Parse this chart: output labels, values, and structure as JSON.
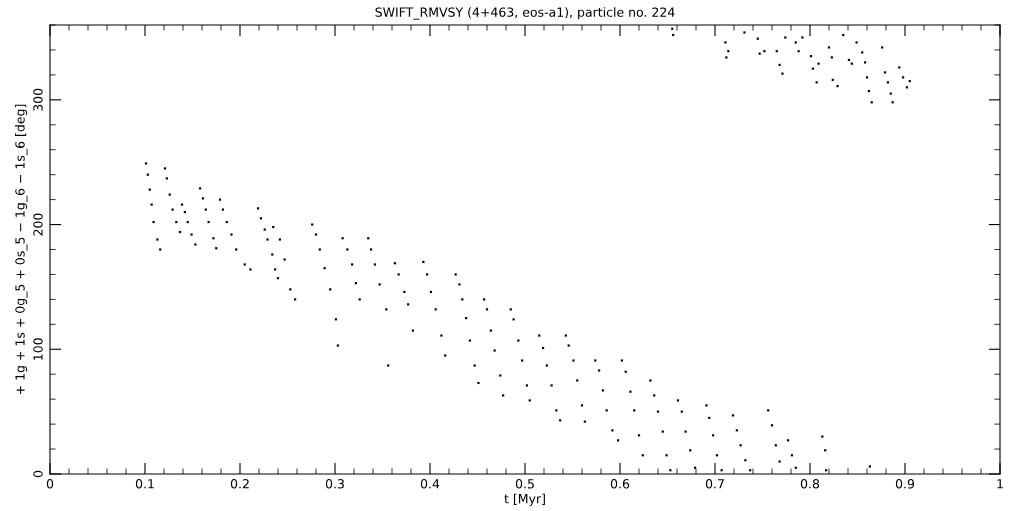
{
  "chart_data": {
    "type": "scatter",
    "title": "SWIFT_RMVSY (4+463, eos-a1), particle no. 224",
    "xlabel": "t [Myr]",
    "ylabel": "+ 1g + 1s + 0g_5 + 0s_5 − 1g_6 − 1s_6 [deg]",
    "xlim": [
      0,
      1
    ],
    "ylim": [
      0,
      360
    ],
    "xticks": [
      0,
      0.1,
      0.2,
      0.3,
      0.4,
      0.5,
      0.6,
      0.7,
      0.8,
      0.9,
      1
    ],
    "yticks": [
      0,
      100,
      200,
      300
    ],
    "grid": false,
    "legend": false,
    "marker": "square",
    "series": [
      {
        "color": "#000000",
        "x": [
          0.101,
          0.103,
          0.105,
          0.107,
          0.109,
          0.113,
          0.116,
          0.121,
          0.123,
          0.126,
          0.129,
          0.133,
          0.137,
          0.139,
          0.142,
          0.145,
          0.149,
          0.153,
          0.158,
          0.161,
          0.164,
          0.167,
          0.172,
          0.175,
          0.179,
          0.182,
          0.186,
          0.191,
          0.196,
          0.205,
          0.211,
          0.219,
          0.222,
          0.226,
          0.229,
          0.234,
          0.237,
          0.24,
          0.235,
          0.242,
          0.247,
          0.253,
          0.258,
          0.276,
          0.28,
          0.284,
          0.289,
          0.295,
          0.301,
          0.303,
          0.308,
          0.313,
          0.318,
          0.322,
          0.326,
          0.335,
          0.338,
          0.342,
          0.347,
          0.354,
          0.356,
          0.363,
          0.367,
          0.373,
          0.377,
          0.382,
          0.393,
          0.397,
          0.401,
          0.406,
          0.412,
          0.416,
          0.427,
          0.431,
          0.434,
          0.438,
          0.442,
          0.447,
          0.451,
          0.457,
          0.46,
          0.464,
          0.468,
          0.474,
          0.477,
          0.485,
          0.488,
          0.493,
          0.497,
          0.502,
          0.505,
          0.515,
          0.519,
          0.523,
          0.528,
          0.533,
          0.537,
          0.543,
          0.546,
          0.551,
          0.555,
          0.56,
          0.563,
          0.574,
          0.578,
          0.582,
          0.586,
          0.592,
          0.598,
          0.602,
          0.606,
          0.611,
          0.615,
          0.62,
          0.624,
          0.632,
          0.636,
          0.64,
          0.645,
          0.649,
          0.653,
          0.661,
          0.665,
          0.669,
          0.674,
          0.679,
          0.691,
          0.694,
          0.698,
          0.702,
          0.707,
          0.719,
          0.723,
          0.727,
          0.732,
          0.756,
          0.76,
          0.764,
          0.768,
          0.777,
          0.781,
          0.785,
          0.813,
          0.816,
          0.863,
          0.737,
          0.817,
          0.655,
          0.656,
          0.711,
          0.712,
          0.714,
          0.731,
          0.745,
          0.747,
          0.752,
          0.765,
          0.768,
          0.771,
          0.774,
          0.785,
          0.788,
          0.792,
          0.801,
          0.803,
          0.807,
          0.809,
          0.82,
          0.823,
          0.824,
          0.829,
          0.835,
          0.841,
          0.844,
          0.849,
          0.855,
          0.858,
          0.86,
          0.862,
          0.865,
          0.876,
          0.879,
          0.882,
          0.885,
          0.887,
          0.894,
          0.898,
          0.902,
          0.905
        ],
        "values": [
          249,
          240,
          228,
          216,
          202,
          188,
          180,
          245,
          237,
          224,
          212,
          202,
          194,
          216,
          210,
          202,
          192,
          184,
          229,
          221,
          212,
          202,
          189,
          181,
          220,
          212,
          202,
          192,
          180,
          168,
          164,
          213,
          205,
          196,
          188,
          176,
          164,
          157,
          198,
          188,
          172,
          148,
          140,
          200,
          192,
          180,
          165,
          148,
          124,
          103,
          189,
          180,
          168,
          153,
          140,
          189,
          180,
          168,
          152,
          132,
          87,
          169,
          160,
          146,
          136,
          115,
          170,
          160,
          146,
          132,
          111,
          95,
          160,
          152,
          140,
          125,
          107,
          87,
          73,
          140,
          132,
          115,
          99,
          79,
          63,
          132,
          124,
          107,
          91,
          71,
          59,
          111,
          101,
          87,
          71,
          51,
          43,
          111,
          103,
          91,
          75,
          55,
          42,
          91,
          83,
          67,
          51,
          35,
          27,
          91,
          82,
          66,
          51,
          31,
          15,
          75,
          63,
          50,
          34,
          15,
          3,
          59,
          50,
          34,
          19,
          5,
          55,
          45,
          31,
          15,
          3,
          47,
          35,
          23,
          11,
          51,
          39,
          23,
          10,
          27,
          15,
          5,
          30,
          19,
          6,
          3,
          3,
          357,
          352,
          346,
          334,
          339,
          354,
          349,
          337,
          339,
          339,
          328,
          321,
          350,
          346,
          339,
          350,
          335,
          325,
          314,
          329,
          342,
          334,
          316,
          311,
          352,
          332,
          329,
          346,
          338,
          330,
          318,
          307,
          298,
          342,
          322,
          314,
          305,
          298,
          326,
          318,
          310,
          315
        ]
      }
    ]
  }
}
